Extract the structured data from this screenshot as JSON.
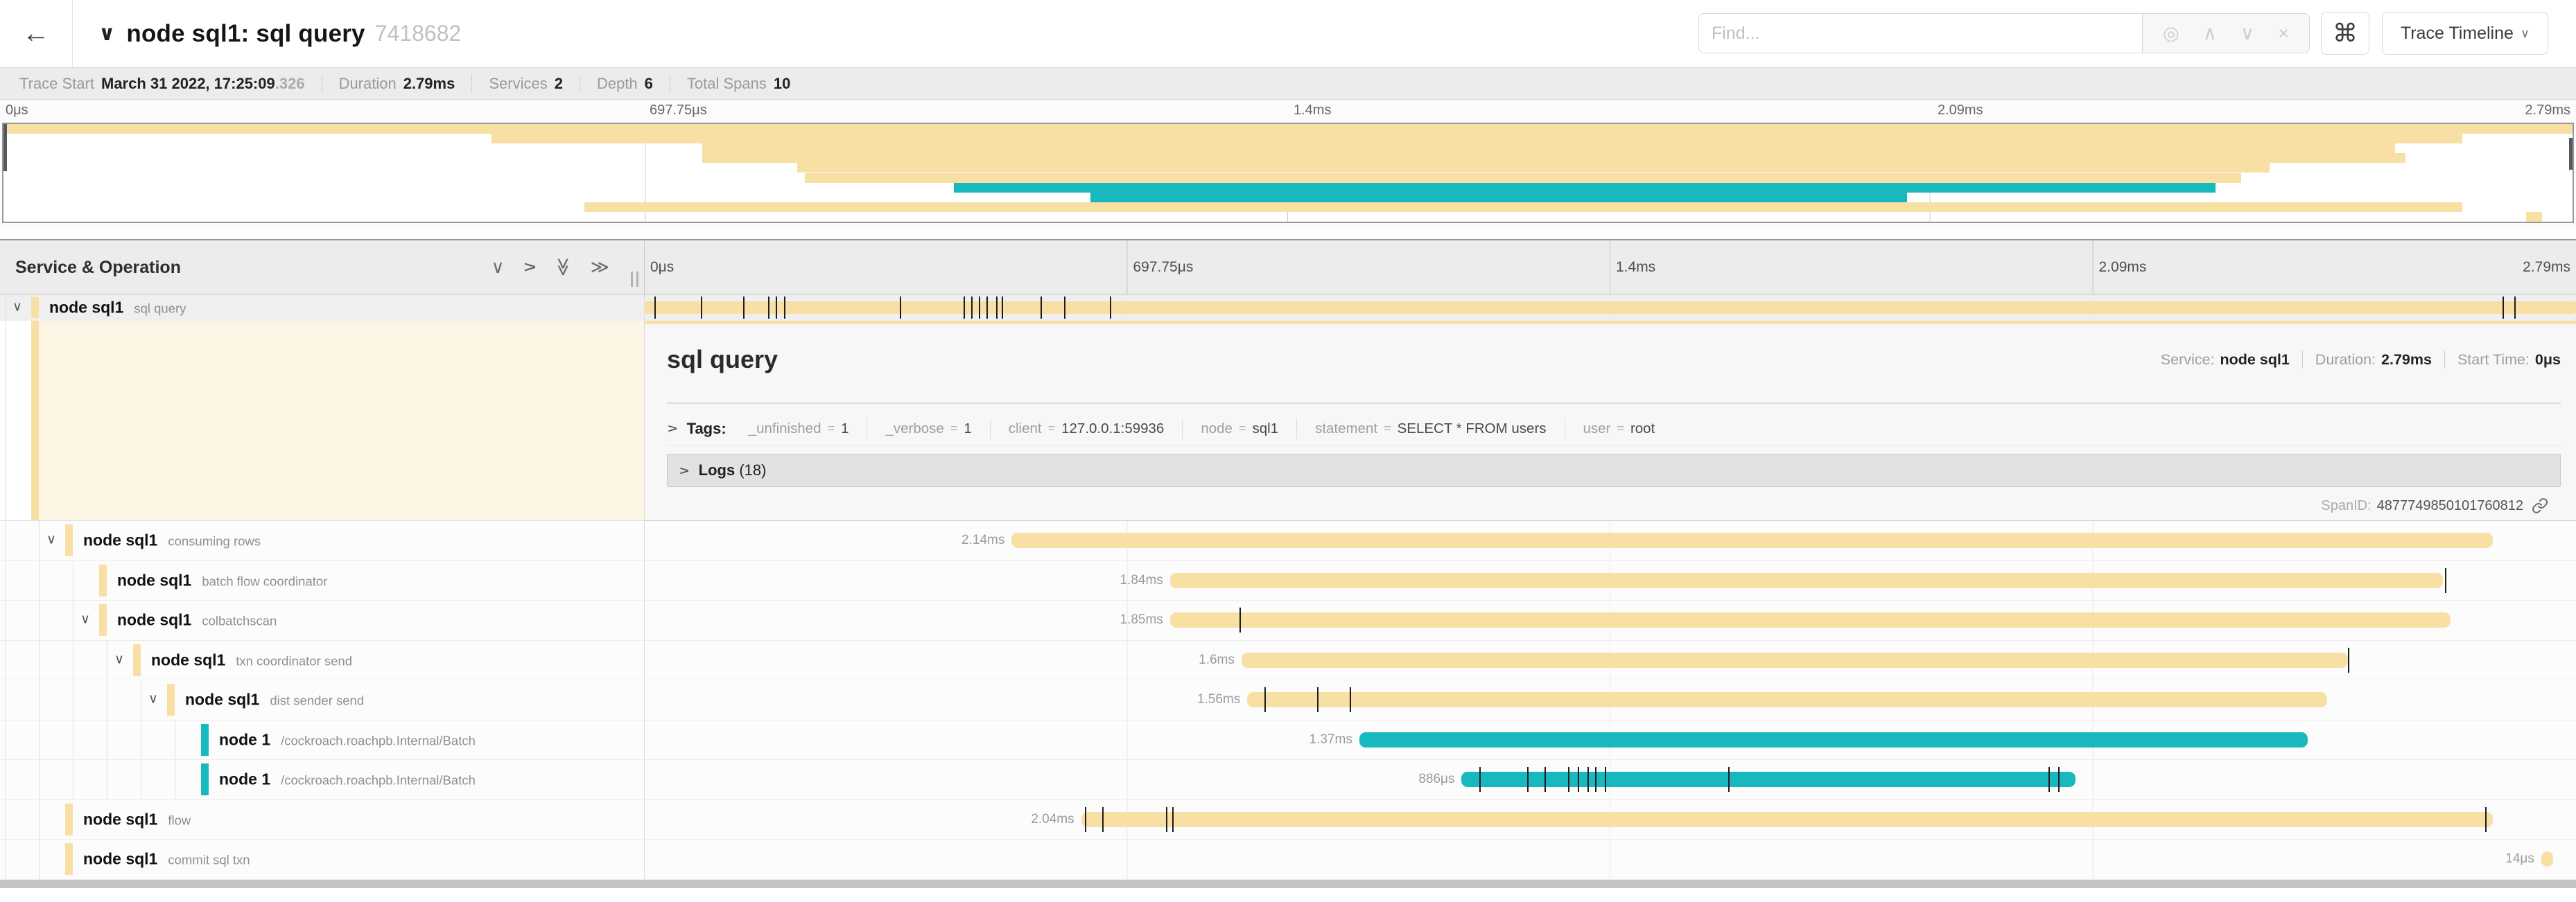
{
  "colors": {
    "tan": "#F8DFA4",
    "teal": "#17B8BE",
    "selected_row": "#efefef",
    "cream": "#fcf5e4"
  },
  "header": {
    "back_icon": "←",
    "collapse_icon": "∨",
    "title": "node sql1: sql query",
    "trace_id": "7418682",
    "find_placeholder": "Find...",
    "shortcut_icon": "⌘",
    "view_button": "Trace Timeline"
  },
  "trace_info": {
    "items": [
      {
        "label": "Trace Start",
        "value": "March 31 2022, 17:25:09",
        "suffix": ".326"
      },
      {
        "label": "Duration",
        "value": "2.79ms"
      },
      {
        "label": "Services",
        "value": "2"
      },
      {
        "label": "Depth",
        "value": "6"
      },
      {
        "label": "Total Spans",
        "value": "10"
      }
    ]
  },
  "time_axis": {
    "labels": [
      "0μs",
      "697.75μs",
      "1.4ms",
      "2.09ms",
      "2.79ms"
    ],
    "positions": [
      0,
      25,
      50,
      75,
      100
    ]
  },
  "left_header": {
    "title": "Service & Operation"
  },
  "spans": [
    {
      "service": "node sql1",
      "operation": "sql query",
      "depth": 0,
      "color": "tan",
      "start": 0,
      "width": 1,
      "duration_label": "",
      "chevron": true,
      "selected": true,
      "ticks": [
        0.005,
        0.029,
        0.051,
        0.064,
        0.068,
        0.072,
        0.132,
        0.165,
        0.169,
        0.173,
        0.177,
        0.182,
        0.185,
        0.205,
        0.217,
        0.241,
        0.962,
        0.968
      ]
    },
    {
      "service": "node sql1",
      "operation": "consuming rows",
      "depth": 1,
      "color": "tan",
      "start": 0.19,
      "width": 0.767,
      "duration_label": "2.14ms",
      "chevron": true,
      "ticks": []
    },
    {
      "service": "node sql1",
      "operation": "batch flow coordinator",
      "depth": 2,
      "color": "tan",
      "start": 0.272,
      "width": 0.659,
      "duration_label": "1.84ms",
      "chevron": false,
      "ticks": [
        0.932
      ]
    },
    {
      "service": "node sql1",
      "operation": "colbatchscan",
      "depth": 2,
      "color": "tan",
      "start": 0.272,
      "width": 0.663,
      "duration_label": "1.85ms",
      "chevron": true,
      "ticks": [
        0.308
      ]
    },
    {
      "service": "node sql1",
      "operation": "txn coordinator send",
      "depth": 3,
      "color": "tan",
      "start": 0.309,
      "width": 0.573,
      "duration_label": "1.6ms",
      "chevron": true,
      "ticks": [
        0.882
      ]
    },
    {
      "service": "node sql1",
      "operation": "dist sender send",
      "depth": 4,
      "color": "tan",
      "start": 0.312,
      "width": 0.559,
      "duration_label": "1.56ms",
      "chevron": true,
      "ticks": [
        0.321,
        0.348,
        0.365
      ]
    },
    {
      "service": "node 1",
      "operation": "/cockroach.roachpb.Internal/Batch",
      "depth": 5,
      "color": "teal",
      "start": 0.37,
      "width": 0.491,
      "duration_label": "1.37ms",
      "chevron": false,
      "ticks": []
    },
    {
      "service": "node 1",
      "operation": "/cockroach.roachpb.Internal/Batch",
      "depth": 5,
      "color": "teal",
      "start": 0.423,
      "width": 0.318,
      "duration_label": "886μs",
      "chevron": false,
      "ticks": [
        0.432,
        0.457,
        0.466,
        0.478,
        0.483,
        0.488,
        0.492,
        0.497,
        0.561,
        0.727,
        0.732
      ]
    },
    {
      "service": "node sql1",
      "operation": "flow",
      "depth": 1,
      "color": "tan",
      "start": 0.226,
      "width": 0.731,
      "duration_label": "2.04ms",
      "chevron": false,
      "ticks": [
        0.228,
        0.237,
        0.27,
        0.273,
        0.953
      ]
    },
    {
      "service": "node sql1",
      "operation": "commit sql txn",
      "depth": 1,
      "color": "tan",
      "start": 0.982,
      "width": 0.006,
      "duration_label": "14μs",
      "chevron": false,
      "ticks": []
    }
  ],
  "detail": {
    "title": "sql query",
    "service_label": "Service:",
    "service": "node sql1",
    "duration_label": "Duration:",
    "duration": "2.79ms",
    "start_label": "Start Time:",
    "start": "0μs",
    "tags_label": "Tags:",
    "tags": [
      {
        "key": "_unfinished",
        "value": "1"
      },
      {
        "key": "_verbose",
        "value": "1"
      },
      {
        "key": "client",
        "value": "127.0.0.1:59936"
      },
      {
        "key": "node",
        "value": "sql1"
      },
      {
        "key": "statement",
        "value": "SELECT * FROM users"
      },
      {
        "key": "user",
        "value": "root"
      }
    ],
    "logs_label": "Logs",
    "logs_count": "(18)",
    "span_id_label": "SpanID:",
    "span_id": "4877749850101760812"
  }
}
